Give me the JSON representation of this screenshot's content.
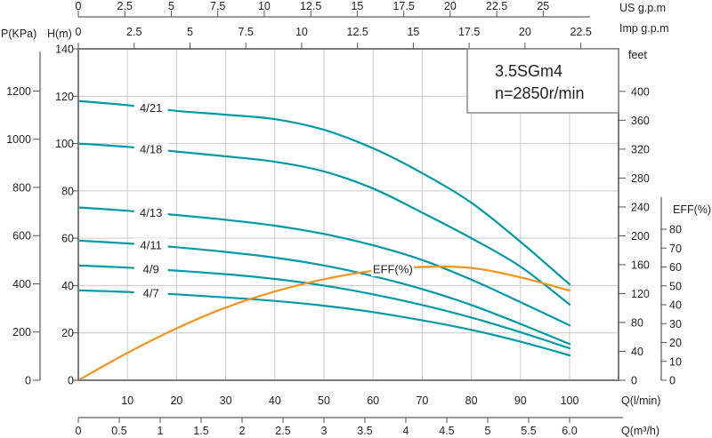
{
  "title_box": {
    "model": "3.5SGm4",
    "speed": "n=2850r/min"
  },
  "colors": {
    "head_curve": "#0099A8",
    "eff_curve": "#F6921E",
    "grid": "#C9C9C9",
    "border": "#7A7A7A",
    "tick": "#555555",
    "text": "#231F20"
  },
  "axes": {
    "us_gpm": {
      "label": "US g.p.m",
      "ticks": [
        "0",
        "2.5",
        "5",
        "7.5",
        "10",
        "12.5",
        "15",
        "17.5",
        "20",
        "22.5",
        "25"
      ]
    },
    "imp_gpm": {
      "label": "Imp g.p.m",
      "ticks": [
        "0",
        "2.5",
        "5",
        "7.5",
        "10",
        "12.5",
        "15",
        "17.5",
        "20",
        "22.5"
      ]
    },
    "p_kpa": {
      "label": "P(KPa)",
      "ticks": [
        "0",
        "200",
        "400",
        "600",
        "800",
        "1000",
        "1200"
      ]
    },
    "h_m": {
      "label": "H(m)",
      "ticks": [
        "0",
        "20",
        "40",
        "60",
        "80",
        "100",
        "120",
        "140"
      ]
    },
    "feet": {
      "label": "feet",
      "ticks": [
        "0",
        "40",
        "80",
        "120",
        "160",
        "200",
        "240",
        "280",
        "320",
        "360",
        "400"
      ]
    },
    "eff_pct": {
      "label": "EFF(%)",
      "ticks": [
        "0",
        "10",
        "20",
        "30",
        "40",
        "50",
        "60",
        "70",
        "80"
      ]
    },
    "q_lmin": {
      "label": "Q(l/min)",
      "ticks": [
        "10",
        "20",
        "30",
        "40",
        "50",
        "60",
        "70",
        "80",
        "90",
        "100"
      ]
    },
    "q_m3h": {
      "label": "Q(m³/h)",
      "ticks": [
        "0",
        "0.5",
        "1",
        "1.5",
        "2",
        "2.5",
        "3",
        "3.5",
        "4",
        "4.5",
        "5",
        "5.5",
        "6.0"
      ]
    }
  },
  "chart_data": {
    "type": "line",
    "title": "3.5SGm4",
    "subtitle": "n=2850r/min",
    "xlabel": "Q(l/min)",
    "ylabel": "H(m)",
    "x_range_lmin": [
      0,
      110
    ],
    "y_range_m": [
      0,
      140
    ],
    "grid": "on",
    "x_gridline_step_lmin": 10,
    "y_gridline_step_m": 20,
    "secondary_x_axes": [
      "US g.p.m (0-25)",
      "Imp g.p.m (0-22.5)",
      "Q(m³/h) (0-6.0)"
    ],
    "secondary_y_axes": [
      "P(KPa) (0-1200)",
      "feet (0-400)",
      "EFF(%) (0-80)"
    ],
    "series": [
      {
        "name": "4/21",
        "unit": "m",
        "axis": "H",
        "color": "#0099A8",
        "label_q": 14.8,
        "points": [
          [
            0,
            118
          ],
          [
            10,
            116.2
          ],
          [
            20,
            113.8
          ],
          [
            30,
            112.2
          ],
          [
            40,
            110.3
          ],
          [
            50,
            105.8
          ],
          [
            60,
            98
          ],
          [
            70,
            87.5
          ],
          [
            80,
            75
          ],
          [
            90,
            58.5
          ],
          [
            100,
            40.5
          ]
        ]
      },
      {
        "name": "4/18",
        "unit": "m",
        "axis": "H",
        "color": "#0099A8",
        "label_q": 14.8,
        "points": [
          [
            0,
            100
          ],
          [
            10,
            98.6
          ],
          [
            20,
            96.6
          ],
          [
            30,
            94.6
          ],
          [
            40,
            92.3
          ],
          [
            50,
            88.2
          ],
          [
            60,
            81
          ],
          [
            70,
            70.8
          ],
          [
            80,
            60
          ],
          [
            90,
            48
          ],
          [
            100,
            32
          ]
        ]
      },
      {
        "name": "4/13",
        "unit": "m",
        "axis": "H",
        "color": "#0099A8",
        "label_q": 14.8,
        "points": [
          [
            0,
            73
          ],
          [
            10,
            71.6
          ],
          [
            20,
            69.8
          ],
          [
            30,
            67.8
          ],
          [
            40,
            65.3
          ],
          [
            50,
            61.8
          ],
          [
            60,
            57
          ],
          [
            70,
            50.8
          ],
          [
            80,
            42.5
          ],
          [
            90,
            33
          ],
          [
            100,
            23.2
          ]
        ]
      },
      {
        "name": "4/11",
        "unit": "m",
        "axis": "H",
        "color": "#0099A8",
        "label_q": 14.8,
        "points": [
          [
            0,
            59
          ],
          [
            10,
            57.8
          ],
          [
            20,
            56.2
          ],
          [
            30,
            54.2
          ],
          [
            40,
            51.8
          ],
          [
            50,
            48.5
          ],
          [
            60,
            44
          ],
          [
            70,
            38.5
          ],
          [
            80,
            31.8
          ],
          [
            90,
            23.8
          ],
          [
            100,
            15.3
          ]
        ]
      },
      {
        "name": "4/9",
        "unit": "m",
        "axis": "H",
        "color": "#0099A8",
        "label_q": 14.8,
        "points": [
          [
            0,
            48.5
          ],
          [
            10,
            47.6
          ],
          [
            20,
            46.3
          ],
          [
            30,
            44.8
          ],
          [
            40,
            42.8
          ],
          [
            50,
            40
          ],
          [
            60,
            36.3
          ],
          [
            70,
            31.8
          ],
          [
            80,
            26.5
          ],
          [
            90,
            20.3
          ],
          [
            100,
            13.5
          ]
        ]
      },
      {
        "name": "4/7",
        "unit": "m",
        "axis": "H",
        "color": "#0099A8",
        "label_q": 14.8,
        "points": [
          [
            0,
            38
          ],
          [
            10,
            37.3
          ],
          [
            20,
            36.3
          ],
          [
            30,
            35
          ],
          [
            40,
            33.5
          ],
          [
            50,
            31.5
          ],
          [
            60,
            28.8
          ],
          [
            70,
            25.3
          ],
          [
            80,
            21.3
          ],
          [
            90,
            16.3
          ],
          [
            100,
            10.5
          ]
        ]
      },
      {
        "name": "EFF(%)",
        "unit": "%",
        "axis": "EFF",
        "color": "#F6921E",
        "label_q": 64,
        "points": [
          [
            0,
            0
          ],
          [
            10,
            14.5
          ],
          [
            20,
            27.5
          ],
          [
            30,
            38.5
          ],
          [
            40,
            47
          ],
          [
            50,
            53.5
          ],
          [
            60,
            58
          ],
          [
            70,
            60
          ],
          [
            80,
            59.5
          ],
          [
            90,
            54.5
          ],
          [
            100,
            47.5
          ]
        ]
      }
    ]
  }
}
